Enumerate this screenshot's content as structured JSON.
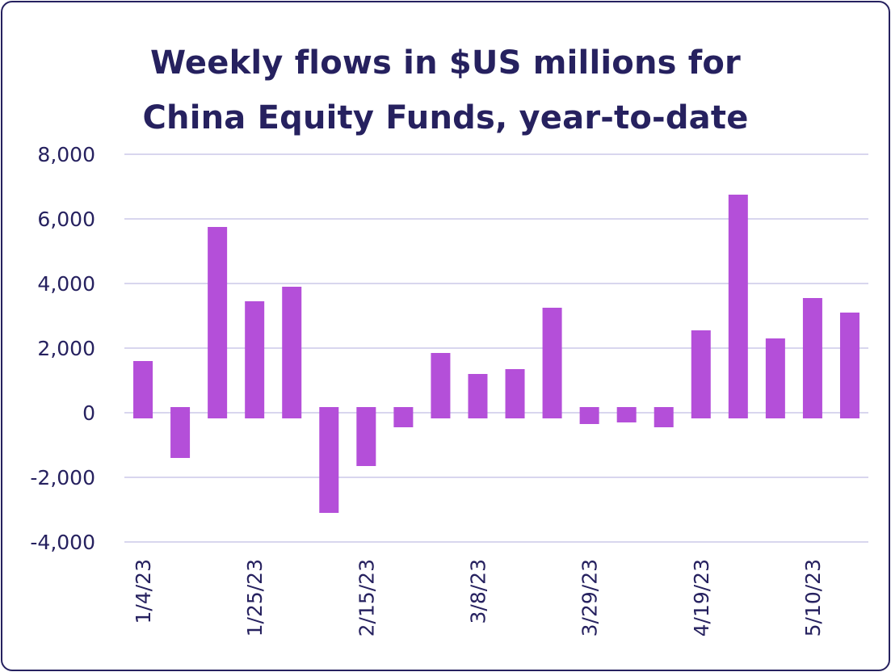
{
  "chart_data": {
    "type": "bar",
    "title_lines": [
      "Weekly flows in $US millions for",
      "China Equity Funds, year-to-date"
    ],
    "xlabel": "",
    "ylabel": "",
    "ylim": [
      -4000,
      8000
    ],
    "y_ticks": [
      8000,
      6000,
      4000,
      2000,
      0,
      -2000,
      -4000
    ],
    "y_tick_labels": [
      "8,000",
      "6,000",
      "4,000",
      "2,000",
      "0",
      "-2,000",
      "-4,000"
    ],
    "categories": [
      "1/4/23",
      "1/11/23",
      "1/18/23",
      "1/25/23",
      "2/1/23",
      "2/8/23",
      "2/15/23",
      "2/22/23",
      "3/1/23",
      "3/8/23",
      "3/15/23",
      "3/22/23",
      "3/29/23",
      "4/5/23",
      "4/12/23",
      "4/19/23",
      "4/26/23",
      "5/3/23",
      "5/10/23",
      "5/17/23"
    ],
    "x_tick_labels": [
      "1/4/23",
      "1/25/23",
      "2/15/23",
      "3/8/23",
      "3/29/23",
      "4/19/23",
      "5/10/23"
    ],
    "x_tick_label_indices": [
      0,
      3,
      6,
      9,
      12,
      15,
      18
    ],
    "values": [
      1600,
      -1400,
      5750,
      3450,
      3900,
      -3100,
      -1650,
      -450,
      1850,
      1200,
      1350,
      3250,
      -350,
      -300,
      -450,
      2550,
      6750,
      2300,
      3550,
      3100
    ],
    "bar_color": "#b44fd9",
    "grid": "horizontal",
    "grid_color": "#d8d6ee",
    "text_color": "#26215f",
    "legend": "none"
  }
}
